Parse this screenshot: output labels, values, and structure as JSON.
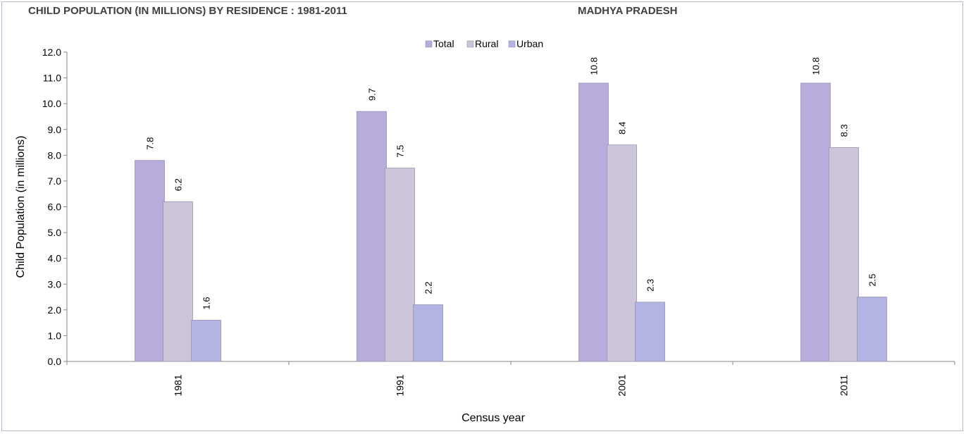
{
  "title": "CHILD POPULATION (IN MILLIONS) BY RESIDENCE : 1981-2011",
  "subtitle": "MADHYA PRADESH",
  "colors": {
    "Total": "#b8acdc",
    "Rural": "#cdc5d9",
    "Urban": "#b2b4e4"
  },
  "chart_data": {
    "type": "bar",
    "title": "CHILD POPULATION (IN MILLIONS) BY RESIDENCE : 1981-2011",
    "subtitle": "MADHYA PRADESH",
    "xlabel": "Census year",
    "ylabel": "Child Population (in millions)",
    "categories": [
      "1981",
      "1991",
      "2001",
      "2011"
    ],
    "series": [
      {
        "name": "Total",
        "values": [
          7.8,
          9.7,
          10.8,
          10.8
        ]
      },
      {
        "name": "Rural",
        "values": [
          6.2,
          7.5,
          8.4,
          8.3
        ]
      },
      {
        "name": "Urban",
        "values": [
          1.6,
          2.2,
          2.3,
          2.5
        ]
      }
    ],
    "ylim": [
      0,
      12
    ],
    "yticks": [
      "0.0",
      "1.0",
      "2.0",
      "3.0",
      "4.0",
      "5.0",
      "6.0",
      "7.0",
      "8.0",
      "9.0",
      "10.0",
      "11.0",
      "12.0"
    ],
    "grid": false,
    "legend": "top-center"
  }
}
